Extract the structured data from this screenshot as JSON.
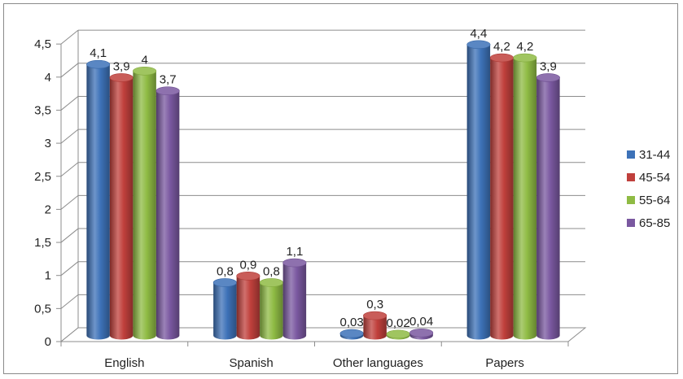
{
  "chart_data": {
    "type": "bar",
    "categories": [
      "English",
      "Spanish",
      "Other languages",
      "Papers"
    ],
    "series": [
      {
        "name": "31-44",
        "color": "#3d72b8",
        "values": [
          4.1,
          0.8,
          0.03,
          4.4
        ],
        "labels": [
          "4,1",
          "0,8",
          "0,03",
          "4,4"
        ]
      },
      {
        "name": "45-54",
        "color": "#c0403c",
        "values": [
          3.9,
          0.9,
          0.3,
          4.2
        ],
        "labels": [
          "3,9",
          "0,9",
          "0,3",
          "4,2"
        ]
      },
      {
        "name": "55-64",
        "color": "#8fbb44",
        "values": [
          4,
          0.8,
          0.02,
          4.2
        ],
        "labels": [
          "4",
          "0,8",
          "0,02",
          "4,2"
        ]
      },
      {
        "name": "65-85",
        "color": "#7a58a0",
        "values": [
          3.7,
          1.1,
          0.04,
          3.9
        ],
        "labels": [
          "3,7",
          "1,1",
          "0,04",
          "3,9"
        ]
      }
    ],
    "yticks": [
      "0",
      "0,5",
      "1",
      "1,5",
      "2",
      "2,5",
      "3",
      "3,5",
      "4",
      "4,5"
    ],
    "ylim": [
      0,
      4.5
    ],
    "grid": true,
    "legend_position": "right"
  }
}
